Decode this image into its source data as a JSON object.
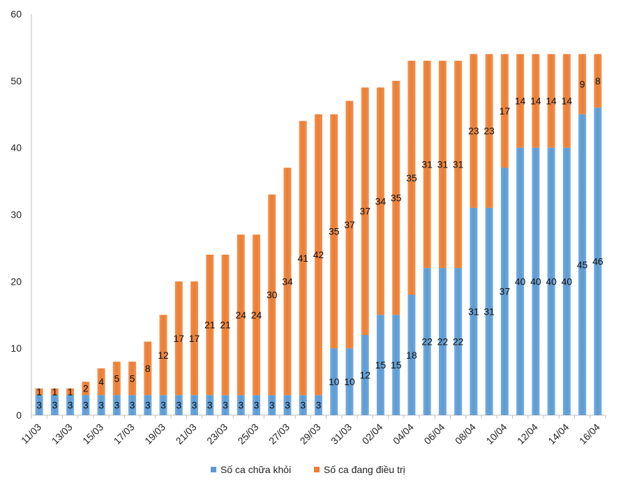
{
  "chart_data": {
    "type": "bar",
    "stacked": true,
    "categories": [
      "11/03",
      "12/03",
      "13/03",
      "14/03",
      "15/03",
      "16/03",
      "17/03",
      "18/03",
      "19/03",
      "20/03",
      "21/03",
      "22/03",
      "23/03",
      "24/03",
      "25/03",
      "26/03",
      "27/03",
      "28/03",
      "29/03",
      "30/03",
      "31/03",
      "01/04",
      "02/04",
      "03/04",
      "04/04",
      "05/04",
      "06/04",
      "07/04",
      "08/04",
      "09/04",
      "10/04",
      "11/04",
      "12/04",
      "13/04",
      "14/04",
      "15/04",
      "16/04"
    ],
    "x_tick_labels": [
      "11/03",
      "13/03",
      "15/03",
      "17/03",
      "19/03",
      "21/03",
      "23/03",
      "25/03",
      "27/03",
      "29/03",
      "31/03",
      "02/04",
      "04/04",
      "06/04",
      "08/04",
      "10/04",
      "12/04",
      "14/04",
      "16/04"
    ],
    "series": [
      {
        "name": "Số ca chữa khỏi",
        "color": "#5B9BD5",
        "values": [
          3,
          3,
          3,
          3,
          3,
          3,
          3,
          3,
          3,
          3,
          3,
          3,
          3,
          3,
          3,
          3,
          3,
          3,
          3,
          10,
          10,
          12,
          15,
          15,
          18,
          22,
          22,
          22,
          31,
          31,
          37,
          40,
          40,
          40,
          40,
          45,
          46
        ]
      },
      {
        "name": "Số ca đang điều trị",
        "color": "#ED7D31",
        "values": [
          1,
          1,
          1,
          2,
          4,
          5,
          5,
          8,
          12,
          17,
          17,
          21,
          21,
          24,
          24,
          30,
          34,
          41,
          42,
          35,
          37,
          37,
          34,
          35,
          35,
          31,
          31,
          31,
          23,
          23,
          17,
          14,
          14,
          14,
          14,
          9,
          8
        ]
      }
    ],
    "ylim": [
      0,
      60
    ],
    "yticks": [
      0,
      10,
      20,
      30,
      40,
      50,
      60
    ],
    "grid": false,
    "legend_position": "bottom"
  }
}
